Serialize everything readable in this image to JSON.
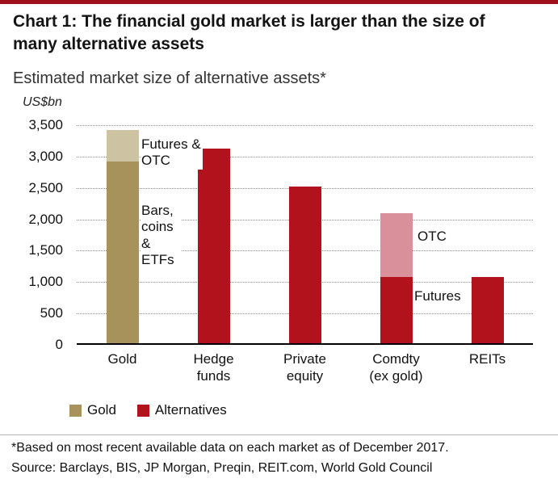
{
  "colors": {
    "top_bar": "#9e101b",
    "gold": "#a6925a",
    "gold_light": "#cdc3a2",
    "red": "#b2121c",
    "red_light": "#d9909a",
    "gridline": "#8c8c8c",
    "axis": "#000000"
  },
  "header": {
    "title": "Chart 1: The financial gold market is larger than the size of many alternative assets",
    "subtitle": "Estimated market size of alternative assets*",
    "unit_label": "US$bn"
  },
  "chart_data": {
    "type": "bar",
    "stacked": true,
    "title": "Estimated market size of alternative assets*",
    "ylabel": "US$bn",
    "xlabel": "",
    "ylim": [
      0,
      3500
    ],
    "ytick_step": 500,
    "yticks_top_to_bottom": [
      "3,500",
      "3,000",
      "2,500",
      "2,000",
      "1,500",
      "1,000",
      "500",
      "0"
    ],
    "grid": "horizontal dotted",
    "legend_position": "bottom-left",
    "categories": [
      "Gold",
      "Hedge\nfunds",
      "Private\nequity",
      "Comdty\n(ex gold)",
      "REITs"
    ],
    "series": [
      {
        "name": "Gold – Bars, coins & ETFs",
        "color": "#a6925a",
        "values": [
          2900,
          0,
          0,
          0,
          0
        ]
      },
      {
        "name": "Gold – Futures & OTC",
        "color": "#cdc3a2",
        "values": [
          500,
          0,
          0,
          0,
          0
        ]
      },
      {
        "name": "Alternatives",
        "color": "#b2121c",
        "values": [
          0,
          3100,
          2500,
          1050,
          1050
        ]
      },
      {
        "name": "Alternatives – OTC (Comdty)",
        "color": "#d9909a",
        "values": [
          0,
          0,
          0,
          1025,
          0
        ]
      }
    ],
    "totals": [
      3400,
      3100,
      2500,
      2075,
      1050
    ]
  },
  "annotations": {
    "gold_top": "Futures & OTC",
    "gold_bottom": "Bars, coins & ETFs",
    "comdty_top": "OTC",
    "comdty_bottom": "Futures"
  },
  "legend": [
    {
      "label": "Gold",
      "color": "#a6925a"
    },
    {
      "label": "Alternatives",
      "color": "#b2121c"
    }
  ],
  "footer": {
    "note": "*Based on most recent available data on each market as of December 2017.",
    "source": "Source: Barclays, BIS, JP Morgan, Preqin, REIT.com, World Gold Council"
  }
}
